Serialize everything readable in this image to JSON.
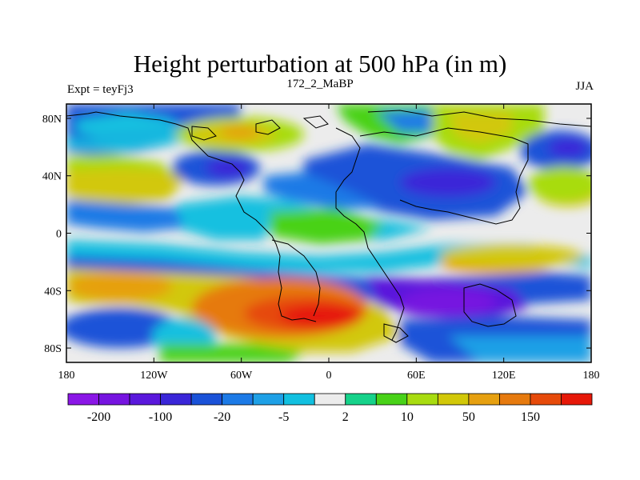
{
  "header": {
    "title": "Height perturbation at 500 hPa (in m)",
    "left_label": "Expt = teyFj3",
    "center_label": "172_2_MaBP",
    "right_label": "JJA"
  },
  "map": {
    "lon_range": [
      -180,
      180
    ],
    "lat_range": [
      -90,
      90
    ],
    "lat_ticks": [
      {
        "value": 80,
        "label": "80N"
      },
      {
        "value": 40,
        "label": "40N"
      },
      {
        "value": 0,
        "label": "0"
      },
      {
        "value": -40,
        "label": "40S"
      },
      {
        "value": -80,
        "label": "80S"
      }
    ],
    "lon_ticks": [
      {
        "value": -180,
        "label": "180"
      },
      {
        "value": -120,
        "label": "120W"
      },
      {
        "value": -60,
        "label": "60W"
      },
      {
        "value": 0,
        "label": "0"
      },
      {
        "value": 60,
        "label": "60E"
      },
      {
        "value": 120,
        "label": "120E"
      },
      {
        "value": 180,
        "label": "180"
      }
    ]
  },
  "colorbar": {
    "colors": [
      "#8a16e6",
      "#7614e0",
      "#5a18dc",
      "#3a26d8",
      "#1a52d8",
      "#1c7ae6",
      "#1ea0e6",
      "#12c0e0",
      "#ececec",
      "#16d28a",
      "#48d218",
      "#a8dc10",
      "#d2c808",
      "#e6a010",
      "#e67a0e",
      "#e64a0a",
      "#e61808"
    ],
    "labels": [
      {
        "boundary": 1,
        "text": "-200"
      },
      {
        "boundary": 3,
        "text": "-100"
      },
      {
        "boundary": 5,
        "text": "-20"
      },
      {
        "boundary": 7,
        "text": "-5"
      },
      {
        "boundary": 9,
        "text": "2"
      },
      {
        "boundary": 11,
        "text": "10"
      },
      {
        "boundary": 13,
        "text": "50"
      },
      {
        "boundary": 15,
        "text": "150"
      }
    ]
  }
}
